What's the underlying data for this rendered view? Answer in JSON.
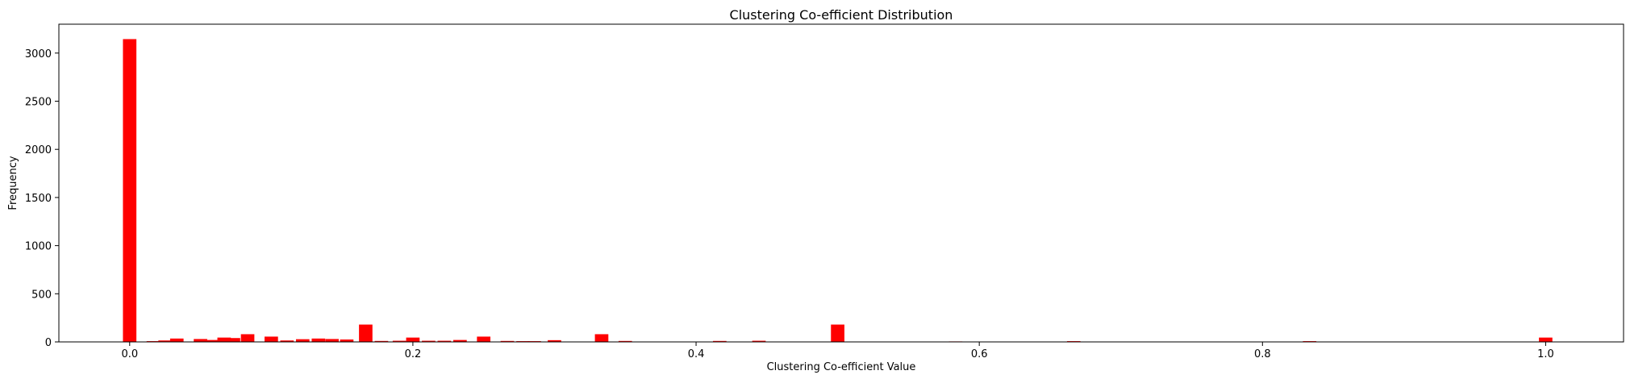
{
  "chart_data": {
    "type": "bar",
    "title": "Clustering Co-efficient Distribution",
    "xlabel": "Clustering Co-efficient Value",
    "ylabel": "Frequency",
    "xlim": [
      -0.05,
      1.055
    ],
    "ylim": [
      0,
      3300
    ],
    "xticks": [
      0.0,
      0.2,
      0.4,
      0.6,
      0.8,
      1.0
    ],
    "xtick_labels": [
      "0.0",
      "0.2",
      "0.4",
      "0.6",
      "0.8",
      "1.0"
    ],
    "yticks": [
      0,
      500,
      1000,
      1500,
      2000,
      2500,
      3000
    ],
    "ytick_labels": [
      "0",
      "500",
      "1000",
      "1500",
      "2000",
      "2500",
      "3000"
    ],
    "bar_width": 0.0095,
    "bar_color": "#ff0000",
    "grid": false,
    "legend": "none",
    "x": [
      0.0,
      0.0167,
      0.025,
      0.0333,
      0.05,
      0.0583,
      0.0667,
      0.0733,
      0.0833,
      0.1,
      0.1111,
      0.1222,
      0.1333,
      0.1429,
      0.1533,
      0.1667,
      0.1778,
      0.1905,
      0.2,
      0.2111,
      0.2222,
      0.2333,
      0.25,
      0.2667,
      0.2778,
      0.2857,
      0.3,
      0.3333,
      0.35,
      0.4167,
      0.4444,
      0.5,
      0.5833,
      0.6667,
      0.8333,
      1.0
    ],
    "values": [
      3145,
      8,
      15,
      35,
      30,
      20,
      45,
      40,
      80,
      55,
      15,
      28,
      35,
      30,
      25,
      180,
      10,
      12,
      45,
      12,
      12,
      20,
      55,
      10,
      8,
      8,
      18,
      80,
      10,
      10,
      12,
      180,
      5,
      8,
      8,
      45
    ]
  }
}
